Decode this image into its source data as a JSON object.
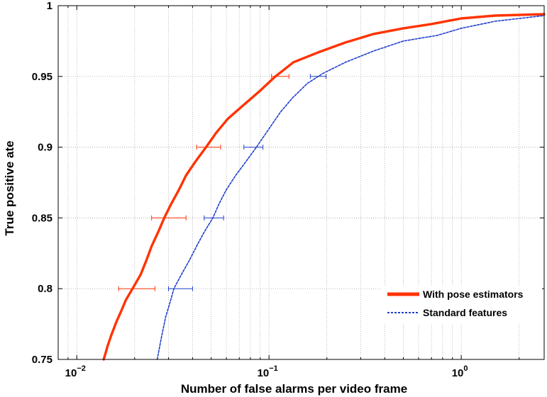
{
  "chart_data": {
    "type": "line",
    "title": "",
    "xlabel": "Number of false alarms per video frame",
    "ylabel": "True positive ate",
    "xscale": "log",
    "xlim": [
      0.008,
      2.7
    ],
    "ylim": [
      0.75,
      1.0
    ],
    "grid": true,
    "legend_position": "bottom-right",
    "x_ticks": [
      {
        "value": 0.01,
        "base": "10",
        "exp": "−2"
      },
      {
        "value": 0.1,
        "base": "10",
        "exp": "−1"
      },
      {
        "value": 1,
        "base": "10",
        "exp": "0"
      }
    ],
    "y_ticks": [
      {
        "value": 0.75,
        "label": "0.75"
      },
      {
        "value": 0.8,
        "label": "0.8"
      },
      {
        "value": 0.85,
        "label": "0.85"
      },
      {
        "value": 0.9,
        "label": "0.9"
      },
      {
        "value": 0.95,
        "label": "0.95"
      },
      {
        "value": 1.0,
        "label": "1"
      }
    ],
    "series": [
      {
        "name": "With pose estimators",
        "color": "#ff3300",
        "style": "solid",
        "points": [
          [
            0.0138,
            0.75
          ],
          [
            0.0145,
            0.76
          ],
          [
            0.0152,
            0.768
          ],
          [
            0.016,
            0.776
          ],
          [
            0.017,
            0.784
          ],
          [
            0.018,
            0.792
          ],
          [
            0.0195,
            0.8
          ],
          [
            0.0215,
            0.81
          ],
          [
            0.023,
            0.82
          ],
          [
            0.0245,
            0.83
          ],
          [
            0.0265,
            0.84
          ],
          [
            0.0285,
            0.85
          ],
          [
            0.031,
            0.86
          ],
          [
            0.034,
            0.87
          ],
          [
            0.037,
            0.88
          ],
          [
            0.0415,
            0.89
          ],
          [
            0.047,
            0.9
          ],
          [
            0.053,
            0.91
          ],
          [
            0.061,
            0.92
          ],
          [
            0.074,
            0.93
          ],
          [
            0.09,
            0.94
          ],
          [
            0.108,
            0.95
          ],
          [
            0.134,
            0.96
          ],
          [
            0.18,
            0.967
          ],
          [
            0.25,
            0.974
          ],
          [
            0.35,
            0.98
          ],
          [
            0.5,
            0.984
          ],
          [
            0.7,
            0.987
          ],
          [
            1.0,
            0.991
          ],
          [
            1.5,
            0.993
          ],
          [
            2.7,
            0.994
          ]
        ],
        "error_bars": [
          {
            "y": 0.8,
            "x": 0.021,
            "xmin": 0.0165,
            "xmax": 0.0255
          },
          {
            "y": 0.85,
            "x": 0.03,
            "xmin": 0.0245,
            "xmax": 0.037
          },
          {
            "y": 0.9,
            "x": 0.048,
            "xmin": 0.042,
            "xmax": 0.056
          },
          {
            "y": 0.95,
            "x": 0.114,
            "xmin": 0.103,
            "xmax": 0.127
          }
        ]
      },
      {
        "name": "Standard  features",
        "color": "#1f3fcc",
        "style": "dashed",
        "points": [
          [
            0.0262,
            0.75
          ],
          [
            0.0275,
            0.765
          ],
          [
            0.029,
            0.78
          ],
          [
            0.0305,
            0.79
          ],
          [
            0.032,
            0.8
          ],
          [
            0.035,
            0.81
          ],
          [
            0.0385,
            0.82
          ],
          [
            0.042,
            0.83
          ],
          [
            0.046,
            0.84
          ],
          [
            0.051,
            0.85
          ],
          [
            0.055,
            0.86
          ],
          [
            0.06,
            0.87
          ],
          [
            0.067,
            0.88
          ],
          [
            0.076,
            0.89
          ],
          [
            0.086,
            0.9
          ],
          [
            0.1,
            0.913
          ],
          [
            0.115,
            0.925
          ],
          [
            0.133,
            0.935
          ],
          [
            0.158,
            0.945
          ],
          [
            0.19,
            0.952
          ],
          [
            0.25,
            0.96
          ],
          [
            0.35,
            0.968
          ],
          [
            0.5,
            0.975
          ],
          [
            0.75,
            0.979
          ],
          [
            1.0,
            0.984
          ],
          [
            1.5,
            0.989
          ],
          [
            2.7,
            0.993
          ]
        ],
        "error_bars": [
          {
            "y": 0.8,
            "x": 0.035,
            "xmin": 0.03,
            "xmax": 0.04
          },
          {
            "y": 0.85,
            "x": 0.052,
            "xmin": 0.046,
            "xmax": 0.058
          },
          {
            "y": 0.9,
            "x": 0.083,
            "xmin": 0.074,
            "xmax": 0.093
          },
          {
            "y": 0.95,
            "x": 0.18,
            "xmin": 0.164,
            "xmax": 0.198
          }
        ]
      }
    ]
  }
}
